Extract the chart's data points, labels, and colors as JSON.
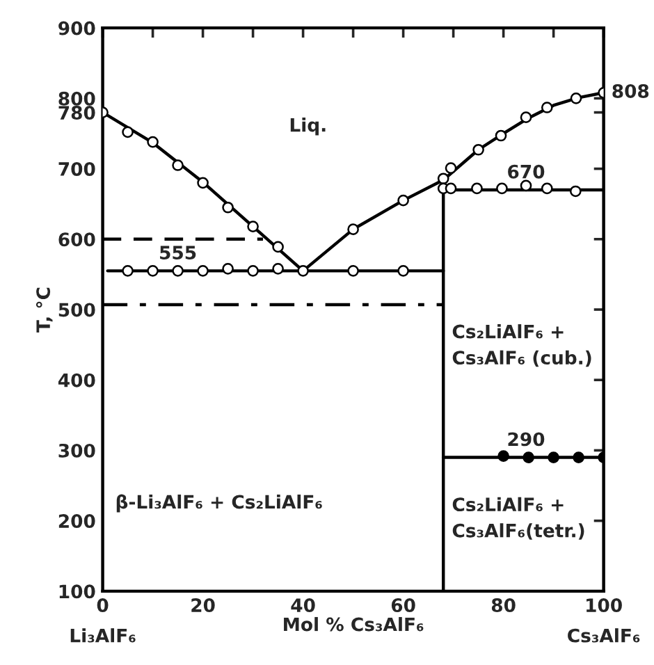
{
  "chart_data": {
    "type": "line",
    "xlabel": "Mol % Cs₃AlF₆",
    "ylabel": "T, °C",
    "xlim": [
      0,
      100
    ],
    "ylim": [
      100,
      900
    ],
    "xticks": [
      {
        "value": 0,
        "label": "0\nLi₃AlF₆"
      },
      {
        "value": 10,
        "label": null
      },
      20,
      {
        "value": 30,
        "label": null
      },
      40,
      {
        "value": 50,
        "label": null
      },
      60,
      {
        "value": 70,
        "label": null
      },
      80,
      {
        "value": 90,
        "label": null
      },
      {
        "value": 100,
        "label": "100\nCs₃AlF₆"
      }
    ],
    "yticks": [
      100,
      200,
      300,
      400,
      500,
      600,
      700,
      780,
      800,
      900
    ],
    "grid": false,
    "legend": false,
    "series": [
      {
        "color": "#000000",
        "line_style": "solid",
        "x": [
          0,
          10,
          20,
          30,
          40
        ],
        "values": [
          780,
          737,
          681,
          618,
          555
        ]
      },
      {
        "color": "#000000",
        "line_style": "solid",
        "x": [
          40,
          50,
          60,
          68,
          75,
          80,
          85,
          90,
          95,
          100
        ],
        "values": [
          555,
          614,
          655,
          684,
          727,
          750,
          772,
          790,
          801,
          808
        ]
      },
      {
        "color": "#000000",
        "line_style": "solid",
        "x": [
          1,
          68
        ],
        "values": [
          555,
          555
        ]
      },
      {
        "color": "#000000",
        "line_style": "solid",
        "x": [
          68,
          100
        ],
        "values": [
          670,
          670
        ]
      },
      {
        "color": "#000000",
        "line_style": "solid",
        "x": [
          68,
          68
        ],
        "values": [
          100,
          676
        ]
      },
      {
        "color": "#000000",
        "line_style": "solid",
        "x": [
          68,
          100
        ],
        "values": [
          290,
          290
        ]
      },
      {
        "color": "#000000",
        "line_style": "dashed",
        "x": [
          0,
          32
        ],
        "values": [
          600,
          600
        ]
      },
      {
        "color": "#000000",
        "line_style": "dashdot",
        "x": [
          0,
          68
        ],
        "values": [
          507,
          507
        ]
      },
      {
        "type": "scatter",
        "color": "#ffffff",
        "marker": "circle",
        "x": [
          0,
          5,
          10,
          15,
          20,
          25,
          30,
          35,
          40,
          50,
          60,
          68,
          69.5,
          75,
          79.5,
          84.5,
          88.7,
          94.5,
          100
        ],
        "values": [
          780,
          752,
          738,
          705,
          680,
          645,
          618,
          589,
          555,
          614,
          655,
          686,
          701,
          727,
          747,
          773,
          787,
          800,
          808
        ]
      },
      {
        "type": "scatter",
        "color": "#ffffff",
        "marker": "circle",
        "x": [
          5,
          10,
          15,
          20,
          25,
          30,
          35,
          50,
          60,
          68,
          69.5,
          74.7,
          79.7,
          84.5,
          88.7,
          94.4
        ],
        "values": [
          555,
          555,
          555,
          555,
          558,
          555,
          558,
          555,
          555,
          672,
          672,
          672,
          672,
          676,
          672,
          668
        ]
      },
      {
        "type": "scatter",
        "color": "#000000",
        "marker": "circle",
        "x": [
          80,
          85,
          90,
          95,
          100
        ],
        "values": [
          292,
          290,
          290,
          290,
          290
        ]
      }
    ],
    "annotations": [
      "Liq.",
      {
        "text": "555",
        "x": 15,
        "y": 555
      },
      {
        "text": "670",
        "x": 84.5,
        "y": 670
      },
      {
        "text": "808",
        "x": 100,
        "y": 808
      },
      {
        "text": "290",
        "x": 84.5,
        "y": 290
      },
      "Cs₂LiAlF₆ +\nCs₃AlF₆ (cub.)",
      "Cs₂LiAlF₆ +\nCs₃AlF₆(tetr.)",
      "β-Li₃AlF₆ + Cs₂LiAlF₆"
    ]
  }
}
